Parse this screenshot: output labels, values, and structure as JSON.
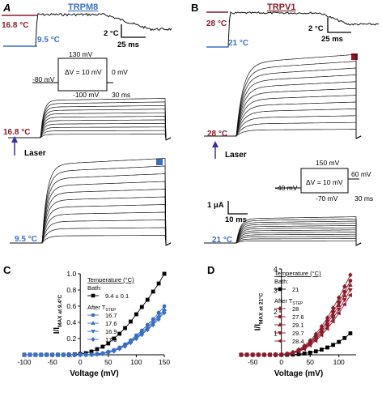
{
  "figure": {
    "panels": {
      "A": {
        "letter": "A",
        "title": "TRPM8",
        "temp_high": "16.8 °C",
        "temp_low": "9.5 °C",
        "temp_scale": "2 °C",
        "time_scale": "25 ms",
        "protocol": {
          "top": "130 mV",
          "left": "-80 mV",
          "right": "0 mV",
          "bottom": "-100 mV",
          "delta": "ΔV = 10 mV",
          "duration": "30 ms"
        },
        "trace_label_high": "16.8 °C",
        "laser": "Laser",
        "trace_label_low": "9.5 °C",
        "marker_color": "#3a6fc4"
      },
      "B": {
        "letter": "B",
        "title": "TRPV1",
        "temp_high": "28 °C",
        "temp_low": "21 °C",
        "temp_scale": "2 °C",
        "time_scale": "25 ms",
        "trace_label_high": "28 °C",
        "laser": "Laser",
        "protocol": {
          "top": "150 mV",
          "left": "-40 mV",
          "right": "60 mV",
          "bottom": "-70 mV",
          "delta": "ΔV = 10 mV",
          "duration": "30 ms"
        },
        "current_scale": "1 μA",
        "current_time_scale": "10 ms",
        "trace_label_low": "21 °C",
        "marker_color": "#8b1a2b"
      }
    },
    "colors": {
      "trpm8_blue": "#3a6fc4",
      "trpv1_red": "#8b1a2b",
      "laser_arrow": "#3b2fa0",
      "black": "#000000"
    }
  },
  "chart_data": [
    {
      "panel": "C",
      "type": "line",
      "xlabel": "Voltage (mV)",
      "ylabel": "I/I",
      "ylabel_sub": "MAX at 9.4°C",
      "xlim": [
        -100,
        150
      ],
      "ylim": [
        0,
        1
      ],
      "xticks": [
        -100,
        -50,
        0,
        50,
        100,
        150
      ],
      "yticks": [
        0,
        0.2,
        0.4,
        0.6,
        0.8,
        1
      ],
      "ytick_labels": [
        "0.0",
        "0.2",
        "0.4",
        "0.6",
        "0.8",
        "1.0"
      ],
      "legend": {
        "heading": "Temperature (°C)",
        "group1": "Bath:",
        "group2": "After T",
        "group2_sub": "STEP"
      },
      "series": [
        {
          "name": "9.4 ± 0.1",
          "group": 1,
          "color": "#000000",
          "marker": "square",
          "x": [
            -100,
            -90,
            -80,
            -70,
            -60,
            -50,
            -40,
            -30,
            -20,
            -10,
            0,
            10,
            20,
            30,
            40,
            50,
            60,
            70,
            80,
            90,
            100,
            110,
            120,
            130,
            140,
            150
          ],
          "y": [
            0,
            0,
            0,
            0,
            0,
            0,
            0,
            0,
            0,
            0.005,
            0.01,
            0.02,
            0.04,
            0.07,
            0.1,
            0.14,
            0.2,
            0.26,
            0.33,
            0.41,
            0.5,
            0.59,
            0.68,
            0.78,
            0.88,
            1.0
          ]
        },
        {
          "name": "16.7",
          "group": 2,
          "color": "#3a6fc4",
          "marker": "circle",
          "x": [
            -100,
            -90,
            -80,
            -70,
            -60,
            -50,
            -40,
            -30,
            -20,
            -10,
            0,
            10,
            20,
            30,
            40,
            50,
            60,
            70,
            80,
            90,
            100,
            110,
            120,
            130,
            140,
            150
          ],
          "y": [
            0,
            0,
            0,
            0,
            0,
            0,
            0,
            0,
            0,
            0,
            0,
            0,
            0.005,
            0.01,
            0.02,
            0.04,
            0.06,
            0.09,
            0.13,
            0.18,
            0.24,
            0.3,
            0.37,
            0.44,
            0.52,
            0.6
          ]
        },
        {
          "name": "17.6",
          "group": 2,
          "color": "#3a6fc4",
          "marker": "triangle-up",
          "x": [
            -100,
            -90,
            -80,
            -70,
            -60,
            -50,
            -40,
            -30,
            -20,
            -10,
            0,
            10,
            20,
            30,
            40,
            50,
            60,
            70,
            80,
            90,
            100,
            110,
            120,
            130,
            140,
            150
          ],
          "y": [
            0,
            0,
            0,
            0,
            0,
            0,
            0,
            0,
            0,
            0,
            0,
            0,
            0.004,
            0.01,
            0.018,
            0.035,
            0.055,
            0.085,
            0.12,
            0.17,
            0.22,
            0.28,
            0.34,
            0.41,
            0.48,
            0.56
          ]
        },
        {
          "name": "16.9",
          "group": 2,
          "color": "#3a6fc4",
          "marker": "triangle-down",
          "x": [
            -100,
            -90,
            -80,
            -70,
            -60,
            -50,
            -40,
            -30,
            -20,
            -10,
            0,
            10,
            20,
            30,
            40,
            50,
            60,
            70,
            80,
            90,
            100,
            110,
            120,
            130,
            140,
            150
          ],
          "y": [
            0,
            0,
            0,
            0,
            0,
            0,
            0,
            0,
            0,
            0,
            0,
            0,
            0.003,
            0.008,
            0.015,
            0.03,
            0.05,
            0.08,
            0.11,
            0.16,
            0.21,
            0.26,
            0.32,
            0.39,
            0.46,
            0.54
          ]
        },
        {
          "name": "17.9",
          "group": 2,
          "color": "#3a6fc4",
          "marker": "diamond",
          "x": [
            -100,
            -90,
            -80,
            -70,
            -60,
            -50,
            -40,
            -30,
            -20,
            -10,
            0,
            10,
            20,
            30,
            40,
            50,
            60,
            70,
            80,
            90,
            100,
            110,
            120,
            130,
            140,
            150
          ],
          "y": [
            0,
            0,
            0,
            0,
            0,
            0,
            0,
            0,
            0,
            0,
            0,
            0,
            0.003,
            0.007,
            0.013,
            0.028,
            0.045,
            0.075,
            0.105,
            0.15,
            0.2,
            0.25,
            0.31,
            0.37,
            0.44,
            0.52
          ]
        }
      ]
    },
    {
      "panel": "D",
      "type": "line",
      "xlabel": "Voltage (mV)",
      "ylabel": "I/I",
      "ylabel_sub": "MAX at 21°C",
      "xlim": [
        -70,
        130
      ],
      "ylim": [
        0,
        4
      ],
      "xticks": [
        -50,
        0,
        50,
        100
      ],
      "yticks": [
        0,
        1,
        2,
        3,
        4
      ],
      "ytick_labels": [
        "0",
        "1",
        "2",
        "3",
        "4"
      ],
      "legend": {
        "heading": "Temperature (°C)",
        "group1": "Bath:",
        "group2": "After T",
        "group2_sub": "STEP"
      },
      "series": [
        {
          "name": "21",
          "group": 1,
          "color": "#000000",
          "marker": "square",
          "x": [
            -70,
            -60,
            -50,
            -40,
            -30,
            -20,
            -10,
            0,
            10,
            20,
            30,
            40,
            50,
            60,
            70,
            80,
            90,
            100,
            110,
            120
          ],
          "y": [
            0,
            0,
            0,
            0,
            0,
            0,
            0,
            0,
            0,
            0.01,
            0.03,
            0.06,
            0.1,
            0.16,
            0.24,
            0.34,
            0.46,
            0.6,
            0.78,
            1.0
          ]
        },
        {
          "name": "28",
          "group": 2,
          "color": "#8b1a2b",
          "marker": "diamond",
          "x": [
            -70,
            -60,
            -50,
            -40,
            -30,
            -20,
            -10,
            0,
            10,
            20,
            30,
            40,
            50,
            60,
            70,
            80,
            90,
            100,
            110,
            120
          ],
          "y": [
            0,
            0,
            0,
            0,
            0,
            0,
            0,
            0.01,
            0.05,
            0.12,
            0.24,
            0.42,
            0.66,
            0.96,
            1.32,
            1.72,
            2.18,
            2.66,
            3.18,
            3.72
          ]
        },
        {
          "name": "27.6",
          "group": 2,
          "color": "#8b1a2b",
          "marker": "circle",
          "x": [
            -70,
            -60,
            -50,
            -40,
            -30,
            -20,
            -10,
            0,
            10,
            20,
            30,
            40,
            50,
            60,
            70,
            80,
            90,
            100,
            110,
            120
          ],
          "y": [
            0,
            0,
            0,
            0,
            0,
            0,
            0,
            0.01,
            0.04,
            0.1,
            0.21,
            0.37,
            0.59,
            0.87,
            1.2,
            1.58,
            2.0,
            2.45,
            2.94,
            3.45
          ]
        },
        {
          "name": "29.1",
          "group": 2,
          "color": "#8b1a2b",
          "marker": "triangle-up",
          "x": [
            -70,
            -60,
            -50,
            -40,
            -30,
            -20,
            -10,
            0,
            10,
            20,
            30,
            40,
            50,
            60,
            70,
            80,
            90,
            100,
            110,
            120
          ],
          "y": [
            0,
            0,
            0,
            0,
            0,
            0,
            0,
            0.01,
            0.04,
            0.09,
            0.19,
            0.34,
            0.54,
            0.8,
            1.1,
            1.46,
            1.86,
            2.3,
            2.76,
            3.25
          ]
        },
        {
          "name": "29.7",
          "group": 2,
          "color": "#8b1a2b",
          "marker": "triangle-down",
          "x": [
            -70,
            -60,
            -50,
            -40,
            -30,
            -20,
            -10,
            0,
            10,
            20,
            30,
            40,
            50,
            60,
            70,
            80,
            90,
            100,
            110,
            120
          ],
          "y": [
            0,
            0,
            0,
            0,
            0,
            0,
            0,
            0.008,
            0.035,
            0.08,
            0.17,
            0.3,
            0.49,
            0.73,
            1.01,
            1.34,
            1.71,
            2.12,
            2.56,
            3.02
          ]
        },
        {
          "name": "28.4",
          "group": 2,
          "color": "#8b1a2b",
          "marker": "triangle-left",
          "x": [
            -70,
            -60,
            -50,
            -40,
            -30,
            -20,
            -10,
            0,
            10,
            20,
            30,
            40,
            50,
            60,
            70,
            80,
            90,
            100,
            110,
            120
          ],
          "y": [
            0,
            0,
            0,
            0,
            0,
            0,
            0,
            0.007,
            0.03,
            0.07,
            0.15,
            0.27,
            0.44,
            0.66,
            0.92,
            1.22,
            1.56,
            1.94,
            2.35,
            2.78
          ]
        }
      ]
    }
  ]
}
